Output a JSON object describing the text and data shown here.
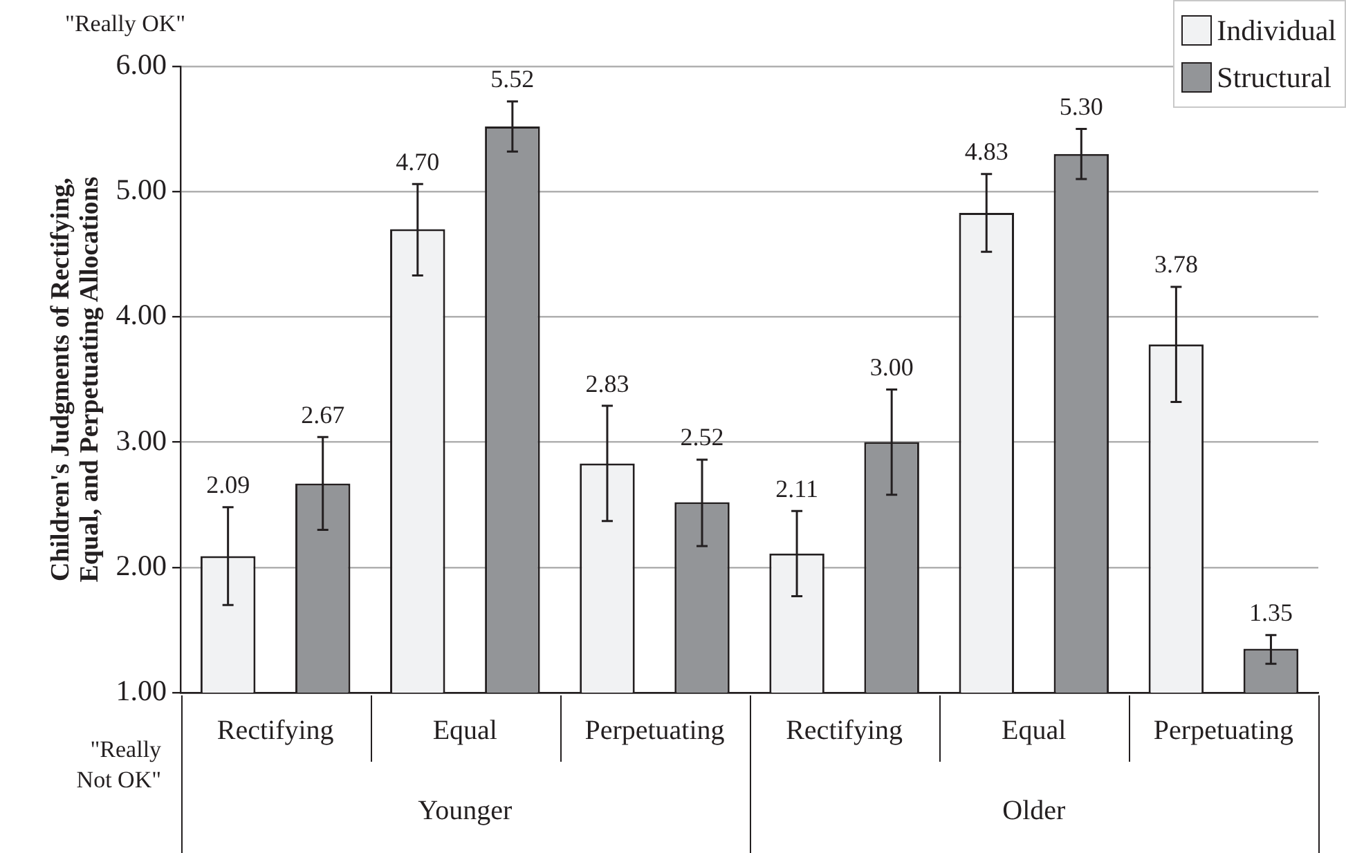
{
  "chart_data": {
    "type": "bar",
    "ylabel": "Children's Judgments of Rectifying, Equal, and Perpetuating Allocations",
    "categories": [
      "Rectifying",
      "Equal",
      "Perpetuating",
      "Rectifying",
      "Equal",
      "Perpetuating"
    ],
    "series": [
      {
        "name": "Individual",
        "color": "#f1f2f3",
        "values": [
          2.09,
          4.7,
          2.83,
          2.11,
          4.83,
          3.78
        ],
        "errors": [
          [
            1.7,
            2.48
          ],
          [
            4.33,
            5.06
          ],
          [
            2.37,
            3.29
          ],
          [
            1.77,
            2.45
          ],
          [
            4.52,
            5.14
          ],
          [
            3.32,
            4.24
          ]
        ],
        "value_labels": [
          "2.09",
          "4.70",
          "2.83",
          "2.11",
          "4.83",
          "3.78"
        ]
      },
      {
        "name": "Structural",
        "color": "#939598",
        "values": [
          2.67,
          5.52,
          2.52,
          3.0,
          5.3,
          1.35
        ],
        "errors": [
          [
            2.3,
            3.04
          ],
          [
            5.32,
            5.72
          ],
          [
            2.17,
            2.86
          ],
          [
            2.58,
            3.42
          ],
          [
            5.1,
            5.5
          ],
          [
            1.23,
            1.46
          ]
        ],
        "value_labels": [
          "2.67",
          "5.52",
          "2.52",
          "3.00",
          "5.30",
          "1.35"
        ]
      }
    ],
    "ylim": [
      1,
      6
    ],
    "yticks": [
      {
        "value": 1,
        "label": "1.00"
      },
      {
        "value": 2,
        "label": "2.00"
      },
      {
        "value": 3,
        "label": "3.00"
      },
      {
        "value": 4,
        "label": "4.00"
      },
      {
        "value": 5,
        "label": "5.00"
      },
      {
        "value": 6,
        "label": "6.00"
      }
    ],
    "grid": "y",
    "legend": "top right",
    "annotations": [
      "\"Really OK\"",
      "\"Really Not OK\"",
      "Younger",
      "Older"
    ]
  }
}
